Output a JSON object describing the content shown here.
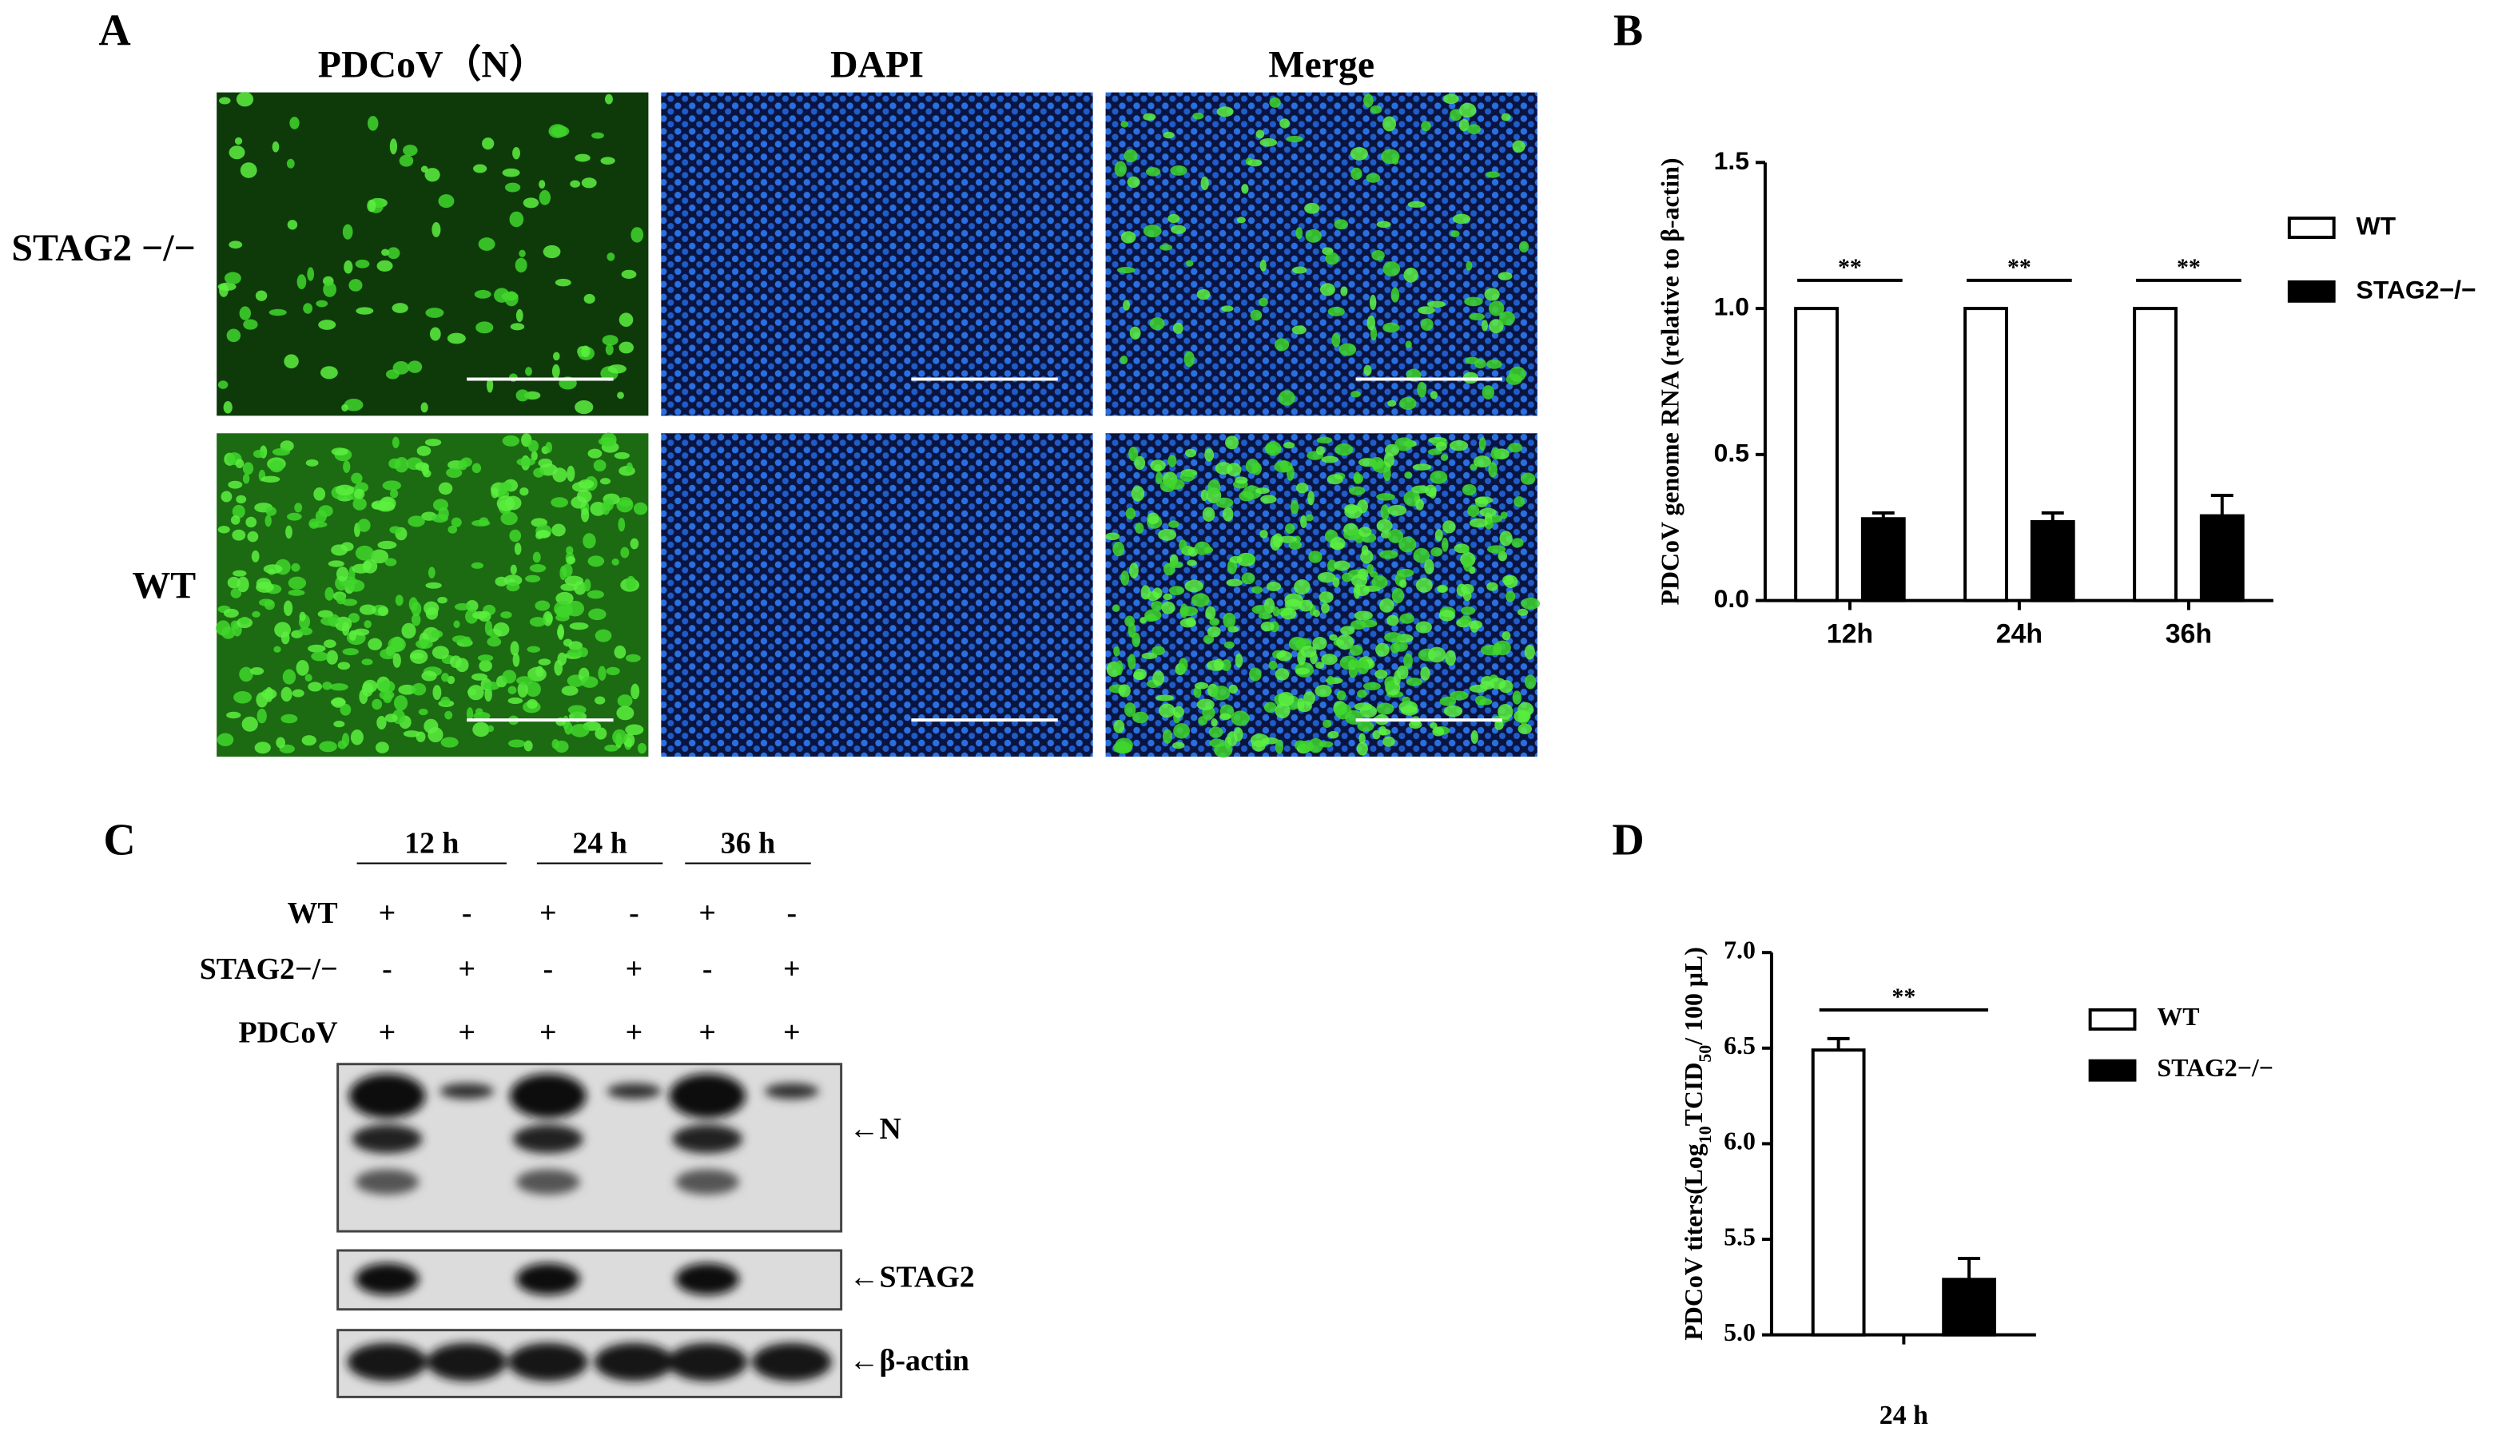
{
  "panel_a": {
    "label": "A",
    "columns": [
      "PDCoV（N）",
      "DAPI",
      "Merge"
    ],
    "rows": [
      "STAG2 −/−",
      "WT"
    ]
  },
  "panel_c": {
    "label": "C",
    "times": [
      "12 h",
      "24 h",
      "36 h"
    ],
    "conditions": [
      {
        "name": "WT",
        "signs": [
          "+",
          "-",
          "+",
          "-",
          "+",
          "-"
        ]
      },
      {
        "name": "STAG2−/−",
        "signs": [
          "-",
          "+",
          "-",
          "+",
          "-",
          "+"
        ]
      },
      {
        "name": "PDCoV",
        "signs": [
          "+",
          "+",
          "+",
          "+",
          "+",
          "+"
        ]
      }
    ],
    "bands": [
      "←N",
      "←STAG2",
      "←β-actin"
    ]
  },
  "chart_data": [
    {
      "type": "bar",
      "panel": "B",
      "y_label": "PDCoV genome RNA (relative to β-actin)",
      "categories": [
        "12h",
        "24h",
        "36h"
      ],
      "series": [
        {
          "name": "WT",
          "color": "#ffffff",
          "values": [
            1,
            1,
            1
          ]
        },
        {
          "name": "STAG2−/−",
          "color": "#000000",
          "values": [
            0.28,
            0.27,
            0.29
          ],
          "errors": [
            0.02,
            0.03,
            0.07
          ]
        }
      ],
      "ylim": [
        0,
        1.5
      ],
      "yticks": [
        {
          "value": 0,
          "label": "0.0"
        },
        {
          "value": 0.5,
          "label": "0.5"
        },
        {
          "value": 1,
          "label": "1.0"
        },
        {
          "value": 1.5,
          "label": "1.5"
        }
      ],
      "annotations": [
        "**",
        "**",
        "**"
      ],
      "legend": "right"
    },
    {
      "type": "bar",
      "panel": "D",
      "y_label": [
        "PDCoV titers(Log",
        "10",
        "TCID",
        "50",
        "/ 100 μL)"
      ],
      "categories": [
        "24 h"
      ],
      "series": [
        {
          "name": "WT",
          "color": "#ffffff",
          "values": [
            6.49
          ],
          "errors": [
            0.06
          ]
        },
        {
          "name": "STAG2−/−",
          "color": "#000000",
          "values": [
            5.29
          ],
          "errors": [
            0.11
          ]
        }
      ],
      "ylim": [
        5,
        7
      ],
      "yticks": [
        {
          "value": 5,
          "label": "5.0"
        },
        {
          "value": 5.5,
          "label": "5.5"
        },
        {
          "value": 6,
          "label": "6.0"
        },
        {
          "value": 6.5,
          "label": "6.5"
        },
        {
          "value": 7,
          "label": "7.0"
        }
      ],
      "annotations": [
        "**"
      ],
      "legend": "right"
    }
  ]
}
